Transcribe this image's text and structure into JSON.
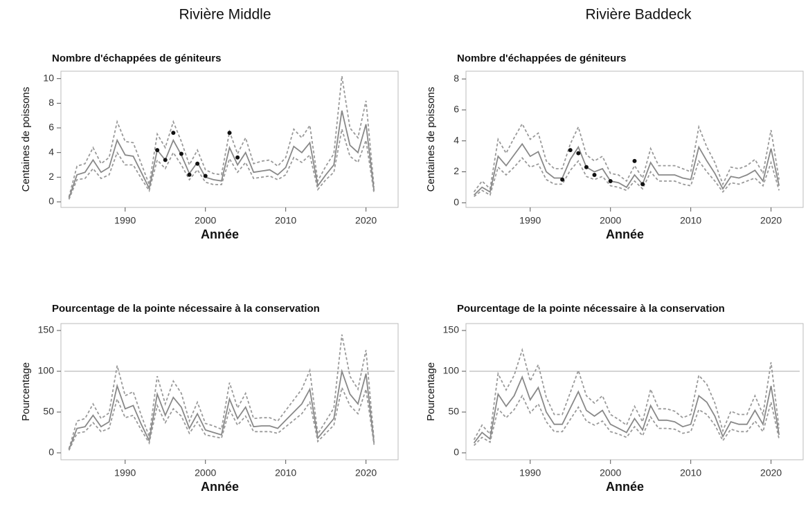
{
  "column_titles": [
    "Rivière Middle",
    "Rivière Baddeck"
  ],
  "chart_data": [
    {
      "type": "line",
      "title": "Nombre d'échappées de géniteurs",
      "xlabel": "Année",
      "ylabel": "Centaines de poissons",
      "x": [
        1983,
        1984,
        1985,
        1986,
        1987,
        1988,
        1989,
        1990,
        1991,
        1992,
        1993,
        1994,
        1995,
        1996,
        1997,
        1998,
        1999,
        2000,
        2001,
        2002,
        2003,
        2004,
        2005,
        2006,
        2007,
        2008,
        2009,
        2010,
        2011,
        2012,
        2013,
        2014,
        2015,
        2016,
        2017,
        2018,
        2019,
        2020,
        2021
      ],
      "xlim": [
        1982,
        2024
      ],
      "xticks": [
        1990,
        2000,
        2010,
        2020
      ],
      "ylim": [
        -0.45,
        10.6
      ],
      "yticks": [
        0,
        2,
        4,
        6,
        8,
        10
      ],
      "series": [
        {
          "style": "dashed",
          "color": "#999999",
          "values": [
            0.4,
            2.9,
            3.1,
            4.4,
            3.1,
            3.6,
            6.5,
            4.9,
            4.8,
            3.1,
            1.4,
            5.5,
            4.4,
            6.5,
            4.9,
            3.0,
            4.2,
            2.6,
            2.3,
            2.2,
            5.7,
            3.9,
            5.2,
            3.1,
            3.3,
            3.4,
            2.9,
            3.6,
            5.9,
            5.2,
            6.2,
            1.7,
            2.9,
            3.9,
            10.2,
            6.0,
            5.2,
            8.2,
            1.2
          ]
        },
        {
          "style": "solid",
          "color": "#888888",
          "values": [
            0.3,
            2.2,
            2.4,
            3.4,
            2.4,
            2.8,
            5.0,
            3.8,
            3.7,
            2.4,
            1.1,
            4.2,
            3.4,
            5.0,
            3.8,
            2.3,
            3.2,
            2.0,
            1.8,
            1.7,
            4.4,
            3.0,
            4.0,
            2.4,
            2.5,
            2.6,
            2.2,
            2.8,
            4.5,
            4.0,
            4.8,
            1.3,
            2.2,
            3.0,
            7.4,
            4.6,
            4.0,
            6.3,
            0.9
          ]
        },
        {
          "style": "dashed",
          "color": "#999999",
          "values": [
            0.2,
            1.8,
            1.9,
            2.7,
            1.9,
            2.2,
            4.0,
            3.0,
            3.0,
            1.9,
            0.9,
            3.4,
            2.7,
            4.0,
            3.0,
            1.8,
            2.6,
            1.6,
            1.4,
            1.4,
            3.5,
            2.4,
            3.2,
            1.9,
            2.0,
            2.1,
            1.8,
            2.2,
            3.6,
            3.2,
            3.8,
            1.0,
            1.8,
            2.4,
            5.9,
            3.7,
            3.2,
            5.0,
            0.7
          ]
        },
        {
          "style": "points",
          "color": "#111111",
          "x": [
            1994,
            1995,
            1996,
            1997,
            1998,
            1999,
            2000,
            2003,
            2004
          ],
          "values": [
            4.2,
            3.4,
            5.6,
            3.9,
            2.2,
            3.1,
            2.1,
            5.6,
            3.6
          ]
        }
      ]
    },
    {
      "type": "line",
      "title": "Nombre d'échappées de géniteurs",
      "xlabel": "Année",
      "ylabel": "Centaines de poissons",
      "x": [
        1983,
        1984,
        1985,
        1986,
        1987,
        1988,
        1989,
        1990,
        1991,
        1992,
        1993,
        1994,
        1995,
        1996,
        1997,
        1998,
        1999,
        2000,
        2001,
        2002,
        2003,
        2004,
        2005,
        2006,
        2007,
        2008,
        2009,
        2010,
        2011,
        2012,
        2013,
        2014,
        2015,
        2016,
        2017,
        2018,
        2019,
        2020,
        2021
      ],
      "xlim": [
        1982,
        2024
      ],
      "xticks": [
        1990,
        2000,
        2010,
        2020
      ],
      "ylim": [
        -0.3,
        8.5
      ],
      "yticks": [
        0,
        2,
        4,
        6,
        8
      ],
      "series": [
        {
          "style": "dashed",
          "color": "#999999",
          "values": [
            0.7,
            1.4,
            0.9,
            4.1,
            3.2,
            4.2,
            5.1,
            4.1,
            4.5,
            2.7,
            2.2,
            2.2,
            3.8,
            4.9,
            3.1,
            2.7,
            3.0,
            1.9,
            1.8,
            1.4,
            2.4,
            1.6,
            3.5,
            2.4,
            2.4,
            2.4,
            2.2,
            2.0,
            4.9,
            3.6,
            2.6,
            1.2,
            2.3,
            2.2,
            2.4,
            2.8,
            1.9,
            4.7,
            1.5
          ]
        },
        {
          "style": "solid",
          "color": "#888888",
          "values": [
            0.5,
            1.0,
            0.7,
            3.0,
            2.4,
            3.1,
            3.8,
            3.0,
            3.3,
            2.0,
            1.6,
            1.6,
            2.8,
            3.6,
            2.3,
            2.0,
            2.2,
            1.4,
            1.3,
            1.0,
            1.8,
            1.2,
            2.6,
            1.8,
            1.8,
            1.8,
            1.6,
            1.5,
            3.6,
            2.7,
            1.9,
            0.9,
            1.7,
            1.6,
            1.8,
            2.1,
            1.4,
            3.5,
            1.1
          ]
        },
        {
          "style": "dashed",
          "color": "#999999",
          "values": [
            0.4,
            0.8,
            0.5,
            2.3,
            1.8,
            2.3,
            2.9,
            2.3,
            2.5,
            1.5,
            1.2,
            1.2,
            2.1,
            2.7,
            1.7,
            1.5,
            1.7,
            1.1,
            1.0,
            0.8,
            1.4,
            0.9,
            2.0,
            1.4,
            1.4,
            1.4,
            1.2,
            1.1,
            2.7,
            2.0,
            1.4,
            0.7,
            1.3,
            1.2,
            1.4,
            1.6,
            1.1,
            2.6,
            0.8
          ]
        },
        {
          "style": "points",
          "color": "#111111",
          "x": [
            1994,
            1995,
            1996,
            1997,
            1998,
            2000,
            2003,
            2004
          ],
          "values": [
            1.5,
            3.4,
            3.2,
            2.3,
            1.8,
            1.4,
            2.7,
            1.2
          ]
        }
      ]
    },
    {
      "type": "line",
      "title": "Pourcentage de la pointe nécessaire à la conservation",
      "xlabel": "Année",
      "ylabel": "Pourcentage",
      "x": [
        1983,
        1984,
        1985,
        1986,
        1987,
        1988,
        1989,
        1990,
        1991,
        1992,
        1993,
        1994,
        1995,
        1996,
        1997,
        1998,
        1999,
        2000,
        2001,
        2002,
        2003,
        2004,
        2005,
        2006,
        2007,
        2008,
        2009,
        2010,
        2011,
        2012,
        2013,
        2014,
        2015,
        2016,
        2017,
        2018,
        2019,
        2020,
        2021
      ],
      "xlim": [
        1982,
        2024
      ],
      "xticks": [
        1990,
        2000,
        2010,
        2020
      ],
      "ylim": [
        -8.5,
        158.5
      ],
      "yticks": [
        0,
        50,
        100,
        150
      ],
      "hline": 100,
      "series": [
        {
          "style": "dashed",
          "color": "#999999",
          "values": [
            5,
            39,
            42,
            60,
            42,
            49,
            107,
            70,
            75,
            46,
            20,
            94,
            60,
            88,
            73,
            39,
            62,
            36,
            33,
            29,
            86,
            55,
            73,
            42,
            43,
            43,
            39,
            52,
            65,
            78,
            101,
            23,
            39,
            55,
            145,
            94,
            78,
            126,
            16
          ]
        },
        {
          "style": "solid",
          "color": "#888888",
          "values": [
            4,
            30,
            32,
            46,
            32,
            38,
            82,
            54,
            58,
            35,
            15,
            72,
            46,
            68,
            56,
            30,
            48,
            28,
            25,
            22,
            66,
            42,
            56,
            32,
            33,
            33,
            30,
            40,
            50,
            60,
            78,
            18,
            30,
            42,
            100,
            72,
            60,
            97,
            12
          ]
        },
        {
          "style": "dashed",
          "color": "#999999",
          "values": [
            3,
            24,
            26,
            37,
            26,
            30,
            66,
            43,
            46,
            28,
            12,
            58,
            37,
            54,
            45,
            24,
            38,
            22,
            20,
            18,
            53,
            34,
            45,
            26,
            26,
            26,
            24,
            32,
            40,
            48,
            62,
            14,
            24,
            34,
            80,
            58,
            48,
            78,
            10
          ]
        }
      ]
    },
    {
      "type": "line",
      "title": "Pourcentage de la pointe nécessaire à la conservation",
      "xlabel": "Année",
      "ylabel": "Pourcentage",
      "x": [
        1983,
        1984,
        1985,
        1986,
        1987,
        1988,
        1989,
        1990,
        1991,
        1992,
        1993,
        1994,
        1995,
        1996,
        1997,
        1998,
        1999,
        2000,
        2001,
        2002,
        2003,
        2004,
        2005,
        2006,
        2007,
        2008,
        2009,
        2010,
        2011,
        2012,
        2013,
        2014,
        2015,
        2016,
        2017,
        2018,
        2019,
        2020,
        2021
      ],
      "xlim": [
        1982,
        2024
      ],
      "xticks": [
        1990,
        2000,
        2010,
        2020
      ],
      "ylim": [
        -8.5,
        158.5
      ],
      "yticks": [
        0,
        50,
        100,
        150
      ],
      "hline": 100,
      "series": [
        {
          "style": "dashed",
          "color": "#999999",
          "values": [
            16,
            34,
            23,
            97,
            77,
            95,
            126,
            88,
            108,
            68,
            47,
            47,
            74,
            101,
            70,
            61,
            70,
            47,
            41,
            34,
            57,
            38,
            78,
            54,
            54,
            51,
            43,
            47,
            95,
            84,
            61,
            27,
            51,
            47,
            47,
            70,
            47,
            111,
            30
          ]
        },
        {
          "style": "solid",
          "color": "#888888",
          "values": [
            12,
            25,
            17,
            72,
            57,
            70,
            93,
            65,
            80,
            50,
            35,
            35,
            55,
            75,
            52,
            45,
            52,
            35,
            30,
            25,
            42,
            28,
            58,
            40,
            40,
            38,
            32,
            35,
            70,
            62,
            45,
            20,
            38,
            35,
            35,
            52,
            35,
            82,
            22
          ]
        },
        {
          "style": "dashed",
          "color": "#999999",
          "values": [
            9,
            19,
            13,
            54,
            43,
            53,
            70,
            49,
            60,
            38,
            26,
            26,
            41,
            56,
            39,
            34,
            39,
            26,
            23,
            19,
            32,
            21,
            44,
            30,
            30,
            29,
            24,
            26,
            53,
            47,
            34,
            15,
            29,
            26,
            26,
            39,
            26,
            62,
            17
          ]
        }
      ]
    }
  ]
}
